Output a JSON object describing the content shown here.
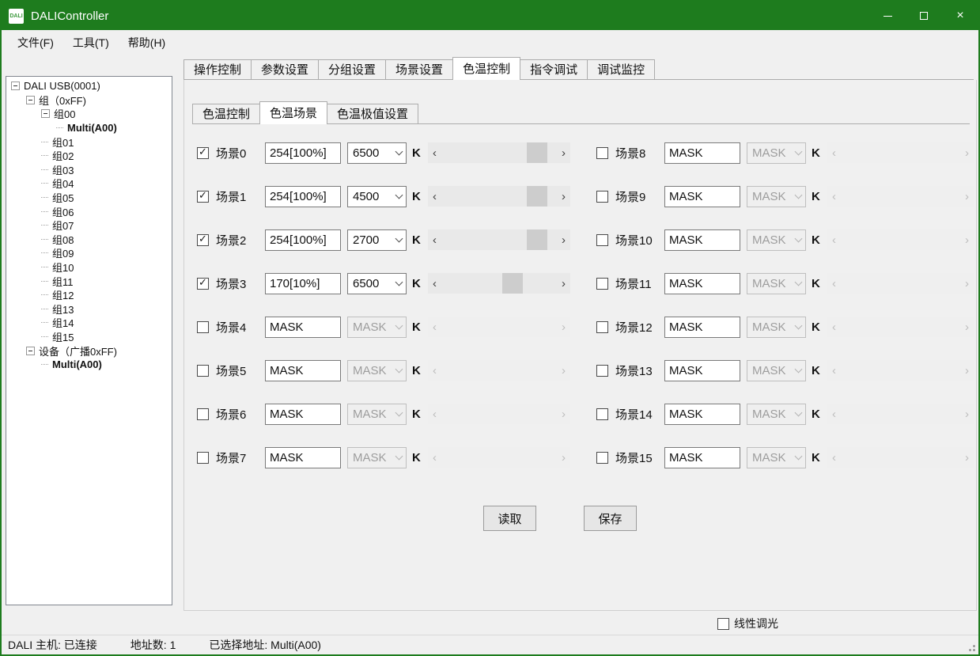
{
  "window": {
    "title": "DALIController",
    "icon_label": "DALI"
  },
  "menu": {
    "items": [
      "文件(F)",
      "工具(T)",
      "帮助(H)"
    ]
  },
  "tree": {
    "items": [
      {
        "label": "DALI USB(0001)",
        "depth": 0,
        "expandable": true,
        "bold": false
      },
      {
        "label": "组（0xFF)",
        "depth": 1,
        "expandable": true,
        "bold": false
      },
      {
        "label": "组00",
        "depth": 2,
        "expandable": true,
        "bold": false
      },
      {
        "label": "Multi(A00)",
        "depth": 3,
        "expandable": false,
        "bold": true
      },
      {
        "label": "组01",
        "depth": 2,
        "expandable": false,
        "bold": false
      },
      {
        "label": "组02",
        "depth": 2,
        "expandable": false,
        "bold": false
      },
      {
        "label": "组03",
        "depth": 2,
        "expandable": false,
        "bold": false
      },
      {
        "label": "组04",
        "depth": 2,
        "expandable": false,
        "bold": false
      },
      {
        "label": "组05",
        "depth": 2,
        "expandable": false,
        "bold": false
      },
      {
        "label": "组06",
        "depth": 2,
        "expandable": false,
        "bold": false
      },
      {
        "label": "组07",
        "depth": 2,
        "expandable": false,
        "bold": false
      },
      {
        "label": "组08",
        "depth": 2,
        "expandable": false,
        "bold": false
      },
      {
        "label": "组09",
        "depth": 2,
        "expandable": false,
        "bold": false
      },
      {
        "label": "组10",
        "depth": 2,
        "expandable": false,
        "bold": false
      },
      {
        "label": "组11",
        "depth": 2,
        "expandable": false,
        "bold": false
      },
      {
        "label": "组12",
        "depth": 2,
        "expandable": false,
        "bold": false
      },
      {
        "label": "组13",
        "depth": 2,
        "expandable": false,
        "bold": false
      },
      {
        "label": "组14",
        "depth": 2,
        "expandable": false,
        "bold": false
      },
      {
        "label": "组15",
        "depth": 2,
        "expandable": false,
        "bold": false
      },
      {
        "label": "设备（广播0xFF)",
        "depth": 1,
        "expandable": true,
        "bold": false
      },
      {
        "label": "Multi(A00)",
        "depth": 2,
        "expandable": false,
        "bold": true
      }
    ]
  },
  "tabs": {
    "main": [
      "操作控制",
      "参数设置",
      "分组设置",
      "场景设置",
      "色温控制",
      "指令调试",
      "调试监控"
    ],
    "active_main": "色温控制",
    "sub": [
      "色温控制",
      "色温场景",
      "色温极值设置"
    ],
    "active_sub": "色温场景"
  },
  "scene_panel": {
    "unit_label": "K",
    "left_rows": [
      {
        "label": "场景0",
        "checked": true,
        "level": "254[100%]",
        "cct": "6500",
        "enabled": true,
        "thumb_pct": 74
      },
      {
        "label": "场景1",
        "checked": true,
        "level": "254[100%]",
        "cct": "4500",
        "enabled": true,
        "thumb_pct": 74
      },
      {
        "label": "场景2",
        "checked": true,
        "level": "254[100%]",
        "cct": "2700",
        "enabled": true,
        "thumb_pct": 74
      },
      {
        "label": "场景3",
        "checked": true,
        "level": "170[10%]",
        "cct": "6500",
        "enabled": true,
        "thumb_pct": 53
      },
      {
        "label": "场景4",
        "checked": false,
        "level": "MASK",
        "cct": "MASK",
        "enabled": false,
        "thumb_pct": null
      },
      {
        "label": "场景5",
        "checked": false,
        "level": "MASK",
        "cct": "MASK",
        "enabled": false,
        "thumb_pct": null
      },
      {
        "label": "场景6",
        "checked": false,
        "level": "MASK",
        "cct": "MASK",
        "enabled": false,
        "thumb_pct": null
      },
      {
        "label": "场景7",
        "checked": false,
        "level": "MASK",
        "cct": "MASK",
        "enabled": false,
        "thumb_pct": null
      }
    ],
    "right_rows": [
      {
        "label": "场景8",
        "checked": false,
        "level": "MASK",
        "cct": "MASK",
        "enabled": false,
        "thumb_pct": null
      },
      {
        "label": "场景9",
        "checked": false,
        "level": "MASK",
        "cct": "MASK",
        "enabled": false,
        "thumb_pct": null
      },
      {
        "label": "场景10",
        "checked": false,
        "level": "MASK",
        "cct": "MASK",
        "enabled": false,
        "thumb_pct": null
      },
      {
        "label": "场景11",
        "checked": false,
        "level": "MASK",
        "cct": "MASK",
        "enabled": false,
        "thumb_pct": null
      },
      {
        "label": "场景12",
        "checked": false,
        "level": "MASK",
        "cct": "MASK",
        "enabled": false,
        "thumb_pct": null
      },
      {
        "label": "场景13",
        "checked": false,
        "level": "MASK",
        "cct": "MASK",
        "enabled": false,
        "thumb_pct": null
      },
      {
        "label": "场景14",
        "checked": false,
        "level": "MASK",
        "cct": "MASK",
        "enabled": false,
        "thumb_pct": null
      },
      {
        "label": "场景15",
        "checked": false,
        "level": "MASK",
        "cct": "MASK",
        "enabled": false,
        "thumb_pct": null
      }
    ],
    "read_button": "读取",
    "save_button": "保存"
  },
  "footer": {
    "linear_dimming": "线性调光"
  },
  "statusbar": {
    "host": "DALI 主机: 已连接",
    "address_count": "地址数: 1",
    "selected_address": "已选择地址: Multi(A00)"
  },
  "colors": {
    "titlebar_green": "#1e7c1e",
    "scroll_thumb": "#cdcdcd",
    "disabled_text": "#9d9d9d"
  }
}
